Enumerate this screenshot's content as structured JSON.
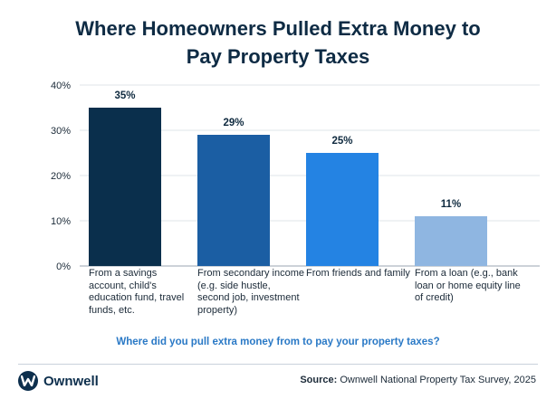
{
  "title_line1": "Where Homeowners Pulled Extra Money to",
  "title_line2": "Pay Property Taxes",
  "question": "Where did you pull extra money from to pay your property taxes?",
  "source_label": "Source:",
  "source_text": "Ownwell National Property Tax Survey, 2025",
  "brand_name": "Ownwell",
  "colors": {
    "brand": "#0d2f4d",
    "question": "#2a79c6"
  },
  "chart_data": {
    "type": "bar",
    "categories": [
      "From a savings account, child's education fund, travel funds, etc.",
      "From secondary income (e.g. side hustle, second job, investment property)",
      "From friends and family",
      "From a loan (e.g., bank loan or home equity line of credit)"
    ],
    "values": [
      35,
      29,
      25,
      11
    ],
    "data_labels": [
      "35%",
      "29%",
      "25%",
      "11%"
    ],
    "bar_colors": [
      "#0a2f4c",
      "#1b5ea3",
      "#2483e3",
      "#8fb6e1"
    ],
    "ylim": [
      0,
      40
    ],
    "yticks": [
      0,
      10,
      20,
      30,
      40
    ],
    "ytick_labels": [
      "0%",
      "10%",
      "20%",
      "30%",
      "40%"
    ],
    "grid": true,
    "title": "Where Homeowners Pulled Extra Money to Pay Property Taxes",
    "xlabel": "Where did you pull extra money from to pay your property taxes?",
    "ylabel": ""
  }
}
